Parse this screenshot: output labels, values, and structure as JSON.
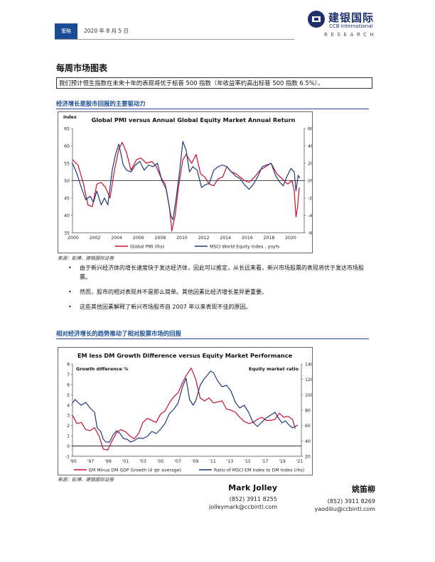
{
  "header": {
    "tag": "策略",
    "date": "2020 年 8 月 5 日",
    "logo_cn": "建银国际",
    "logo_en": "CCB International",
    "research": "RESEARCH"
  },
  "page_title": "每周市场图表",
  "intro": "我们预计恒生指数在未来十年的表现将优于标普 500 指数（年收益率约高出标普 500 指数 6.5%）。",
  "section1": {
    "title": "经济增长是股市回报的主要驱动力",
    "source": "来源：彭博，建银国际证券"
  },
  "section2": {
    "title": "相对经济增长的趋势推动了相对股票市场的回报",
    "source": "来源：彭博，建银国际证券"
  },
  "bullets": [
    "由于新兴经济体的增长速度快于发达经济体，因此可以推定，从长远来看，新兴市场股票的表现将优于发达市场股票。",
    "然而，股市的相对表现并不是那么简单。其他因素比经济增长差异更重要。",
    "这些其他因素解释了新兴市场股市自 2007 年以来表现不佳的原因。"
  ],
  "authors": [
    {
      "name": "Mark Jolley",
      "phone": "(852) 3911 8255",
      "email": "jolleymark@ccbintl.com"
    },
    {
      "name": "姚笛柳",
      "phone": "(852) 3911 8269",
      "email": "yaodiliu@ccbintl.com"
    }
  ],
  "colors": {
    "brand": "#1a4c93",
    "red": "#c8102e",
    "navy": "#1f3a7a"
  },
  "chart_data": [
    {
      "type": "line",
      "title": "Global PMI versus Annual Global Equity Market Annual Return",
      "ylabel_left": "Index",
      "ylim_left": [
        35,
        65
      ],
      "yticks_left": [
        "65",
        "60",
        "55",
        "50",
        "45",
        "40",
        "35"
      ],
      "ylim_right": [
        -60,
        60
      ],
      "yticks_right": [
        "60%",
        "40%",
        "20%",
        "0%",
        "-20%",
        "-40%",
        "-60%"
      ],
      "xlim": [
        2000,
        2021
      ],
      "xticks": [
        "2000",
        "2002",
        "2004",
        "2006",
        "2008",
        "2010",
        "2012",
        "2014",
        "2016",
        "2018",
        "2020"
      ],
      "series": [
        {
          "name": "Global PMI (lhs)",
          "color": "#c8102e",
          "axis": "left",
          "points": [
            [
              2000.0,
              56
            ],
            [
              2000.5,
              54.5
            ],
            [
              2001.0,
              49
            ],
            [
              2001.4,
              43
            ],
            [
              2001.8,
              42.5
            ],
            [
              2002.2,
              49
            ],
            [
              2002.6,
              49.5
            ],
            [
              2003.0,
              48
            ],
            [
              2003.4,
              45
            ],
            [
              2003.8,
              53
            ],
            [
              2004.2,
              59
            ],
            [
              2004.5,
              61
            ],
            [
              2004.9,
              58
            ],
            [
              2005.3,
              53
            ],
            [
              2005.8,
              56
            ],
            [
              2006.2,
              56.5
            ],
            [
              2006.7,
              55
            ],
            [
              2007.2,
              55.5
            ],
            [
              2007.6,
              54
            ],
            [
              2008.0,
              51
            ],
            [
              2008.4,
              49
            ],
            [
              2008.8,
              42
            ],
            [
              2009.0,
              35.5
            ],
            [
              2009.3,
              40
            ],
            [
              2009.6,
              48
            ],
            [
              2010.0,
              56
            ],
            [
              2010.3,
              57.5
            ],
            [
              2010.8,
              55
            ],
            [
              2011.2,
              57.5
            ],
            [
              2011.6,
              52
            ],
            [
              2012.0,
              51
            ],
            [
              2012.4,
              49
            ],
            [
              2012.8,
              48.5
            ],
            [
              2013.2,
              50.5
            ],
            [
              2013.6,
              51
            ],
            [
              2014.0,
              54
            ],
            [
              2014.4,
              52.5
            ],
            [
              2014.8,
              52
            ],
            [
              2015.2,
              51
            ],
            [
              2015.6,
              50
            ],
            [
              2016.0,
              49.5
            ],
            [
              2016.5,
              51
            ],
            [
              2017.0,
              53
            ],
            [
              2017.5,
              54
            ],
            [
              2018.0,
              55
            ],
            [
              2018.5,
              52
            ],
            [
              2019.0,
              50.5
            ],
            [
              2019.5,
              49
            ],
            [
              2019.9,
              50
            ],
            [
              2020.1,
              47
            ],
            [
              2020.25,
              39.5
            ],
            [
              2020.4,
              42.5
            ],
            [
              2020.55,
              48
            ]
          ]
        },
        {
          "name": "MSCI World Equity Index , yoy%",
          "color": "#1f3a7a",
          "axis": "right",
          "points": [
            [
              2000.0,
              20
            ],
            [
              2000.4,
              8
            ],
            [
              2000.8,
              -8
            ],
            [
              2001.2,
              -22
            ],
            [
              2001.6,
              -18
            ],
            [
              2001.9,
              -25
            ],
            [
              2002.2,
              -12
            ],
            [
              2002.6,
              -28
            ],
            [
              2002.9,
              -20
            ],
            [
              2003.2,
              -28
            ],
            [
              2003.6,
              12
            ],
            [
              2003.9,
              30
            ],
            [
              2004.2,
              42
            ],
            [
              2004.6,
              18
            ],
            [
              2004.9,
              12
            ],
            [
              2005.3,
              10
            ],
            [
              2005.7,
              18
            ],
            [
              2006.1,
              22
            ],
            [
              2006.5,
              12
            ],
            [
              2006.9,
              18
            ],
            [
              2007.3,
              16
            ],
            [
              2007.7,
              20
            ],
            [
              2008.1,
              0
            ],
            [
              2008.5,
              -10
            ],
            [
              2008.9,
              -40
            ],
            [
              2009.1,
              -45
            ],
            [
              2009.4,
              -20
            ],
            [
              2009.7,
              10
            ],
            [
              2010.0,
              45
            ],
            [
              2010.3,
              35
            ],
            [
              2010.6,
              10
            ],
            [
              2010.9,
              16
            ],
            [
              2011.3,
              12
            ],
            [
              2011.7,
              -8
            ],
            [
              2012.0,
              -5
            ],
            [
              2012.4,
              -3
            ],
            [
              2012.8,
              12
            ],
            [
              2013.2,
              16
            ],
            [
              2013.6,
              18
            ],
            [
              2014.0,
              16
            ],
            [
              2014.4,
              10
            ],
            [
              2014.8,
              5
            ],
            [
              2015.2,
              2
            ],
            [
              2015.6,
              -5
            ],
            [
              2016.0,
              -10
            ],
            [
              2016.4,
              -4
            ],
            [
              2016.8,
              5
            ],
            [
              2017.2,
              16
            ],
            [
              2017.6,
              18
            ],
            [
              2018.0,
              20
            ],
            [
              2018.4,
              6
            ],
            [
              2018.8,
              -2
            ],
            [
              2019.1,
              -6
            ],
            [
              2019.4,
              4
            ],
            [
              2019.8,
              14
            ],
            [
              2020.1,
              10
            ],
            [
              2020.25,
              -12
            ],
            [
              2020.45,
              6
            ],
            [
              2020.6,
              3
            ]
          ]
        }
      ]
    },
    {
      "type": "line",
      "title": "EM less DM  Growth Difference versus Equity Market Performance",
      "ylabel_left": "Growth difference %",
      "ylabel_right": "Equity market ratio",
      "ylim_left": [
        -1,
        8
      ],
      "yticks_left": [
        "8",
        "7",
        "6",
        "5",
        "4",
        "3",
        "2",
        "1",
        "0",
        "-1"
      ],
      "ylim_right": [
        20,
        150
      ],
      "yticks_right": [
        "140",
        "120",
        "100",
        "80",
        "60",
        "40",
        "20"
      ],
      "xlim": [
        1995,
        2021
      ],
      "xticks": [
        "'95",
        "'97",
        "'99",
        "'01",
        "'03",
        "'05",
        "'07",
        "'09",
        "'11",
        "'13",
        "'15",
        "'17",
        "'19",
        "'21"
      ],
      "series": [
        {
          "name": "EM Minus DM GDP Growth (4 qtr average)",
          "color": "#c8102e",
          "axis": "left",
          "points": [
            [
              1995.0,
              3
            ],
            [
              1995.5,
              2.2
            ],
            [
              1996.0,
              2.3
            ],
            [
              1996.5,
              1.6
            ],
            [
              1997.0,
              1.5
            ],
            [
              1997.5,
              1.8
            ],
            [
              1998.0,
              1
            ],
            [
              1998.5,
              -0.3
            ],
            [
              1999.0,
              -0.4
            ],
            [
              1999.5,
              0.5
            ],
            [
              2000.0,
              1.3
            ],
            [
              2000.5,
              1.6
            ],
            [
              2001.0,
              1.4
            ],
            [
              2001.5,
              1
            ],
            [
              2002.0,
              0.7
            ],
            [
              2002.5,
              1.2
            ],
            [
              2003.0,
              2.3
            ],
            [
              2003.5,
              2.7
            ],
            [
              2004.0,
              2.5
            ],
            [
              2004.5,
              2.3
            ],
            [
              2005.0,
              3.1
            ],
            [
              2005.5,
              3.4
            ],
            [
              2006.0,
              4.2
            ],
            [
              2006.5,
              4.8
            ],
            [
              2007.0,
              5.2
            ],
            [
              2007.5,
              6.2
            ],
            [
              2008.0,
              7
            ],
            [
              2008.5,
              7.6
            ],
            [
              2009.0,
              6.5
            ],
            [
              2009.5,
              4.7
            ],
            [
              2010.0,
              4.4
            ],
            [
              2010.5,
              4.7
            ],
            [
              2011.0,
              4.2
            ],
            [
              2011.5,
              4.3
            ],
            [
              2012.0,
              4.4
            ],
            [
              2012.5,
              3.6
            ],
            [
              2013.0,
              3.5
            ],
            [
              2013.5,
              3.3
            ],
            [
              2014.0,
              2.8
            ],
            [
              2014.5,
              2.4
            ],
            [
              2015.0,
              2.2
            ],
            [
              2015.5,
              2.3
            ],
            [
              2016.0,
              2.6
            ],
            [
              2016.5,
              2.8
            ],
            [
              2017.0,
              2.5
            ],
            [
              2017.5,
              2.5
            ],
            [
              2018.0,
              2.6
            ],
            [
              2018.5,
              3.2
            ],
            [
              2019.0,
              2.8
            ],
            [
              2019.5,
              2.9
            ],
            [
              2020.0,
              2.6
            ],
            [
              2020.3,
              1.7
            ]
          ]
        },
        {
          "name": "Ratio of MSCI EM Index to DM Index (rhs)",
          "color": "#1f3a7a",
          "axis": "right",
          "points": [
            [
              1995.0,
              95
            ],
            [
              1995.3,
              100
            ],
            [
              1995.7,
              95
            ],
            [
              1996.0,
              92
            ],
            [
              1996.5,
              96
            ],
            [
              1997.0,
              88
            ],
            [
              1997.5,
              82
            ],
            [
              1997.8,
              60
            ],
            [
              1998.2,
              55
            ],
            [
              1998.5,
              44
            ],
            [
              1998.8,
              40
            ],
            [
              1999.2,
              40
            ],
            [
              1999.6,
              50
            ],
            [
              2000.0,
              56
            ],
            [
              2000.4,
              52
            ],
            [
              2000.8,
              45
            ],
            [
              2001.2,
              44
            ],
            [
              2001.6,
              40
            ],
            [
              2002.0,
              42
            ],
            [
              2002.5,
              46
            ],
            [
              2003.0,
              45
            ],
            [
              2003.5,
              48
            ],
            [
              2004.0,
              55
            ],
            [
              2004.5,
              52
            ],
            [
              2005.0,
              58
            ],
            [
              2005.5,
              66
            ],
            [
              2006.0,
              80
            ],
            [
              2006.5,
              86
            ],
            [
              2007.0,
              95
            ],
            [
              2007.5,
              118
            ],
            [
              2007.9,
              130
            ],
            [
              2008.3,
              100
            ],
            [
              2008.7,
              92
            ],
            [
              2009.0,
              98
            ],
            [
              2009.5,
              120
            ],
            [
              2009.9,
              128
            ],
            [
              2010.3,
              134
            ],
            [
              2010.7,
              140
            ],
            [
              2011.0,
              138
            ],
            [
              2011.5,
              126
            ],
            [
              2012.0,
              118
            ],
            [
              2012.5,
              120
            ],
            [
              2013.0,
              112
            ],
            [
              2013.5,
              96
            ],
            [
              2014.0,
              88
            ],
            [
              2014.5,
              92
            ],
            [
              2015.0,
              82
            ],
            [
              2015.5,
              68
            ],
            [
              2016.0,
              62
            ],
            [
              2016.5,
              68
            ],
            [
              2017.0,
              74
            ],
            [
              2017.5,
              78
            ],
            [
              2018.0,
              82
            ],
            [
              2018.4,
              74
            ],
            [
              2018.8,
              67
            ],
            [
              2019.2,
              70
            ],
            [
              2019.6,
              64
            ],
            [
              2020.0,
              60
            ],
            [
              2020.3,
              62
            ],
            [
              2020.6,
              64
            ]
          ]
        }
      ]
    }
  ]
}
